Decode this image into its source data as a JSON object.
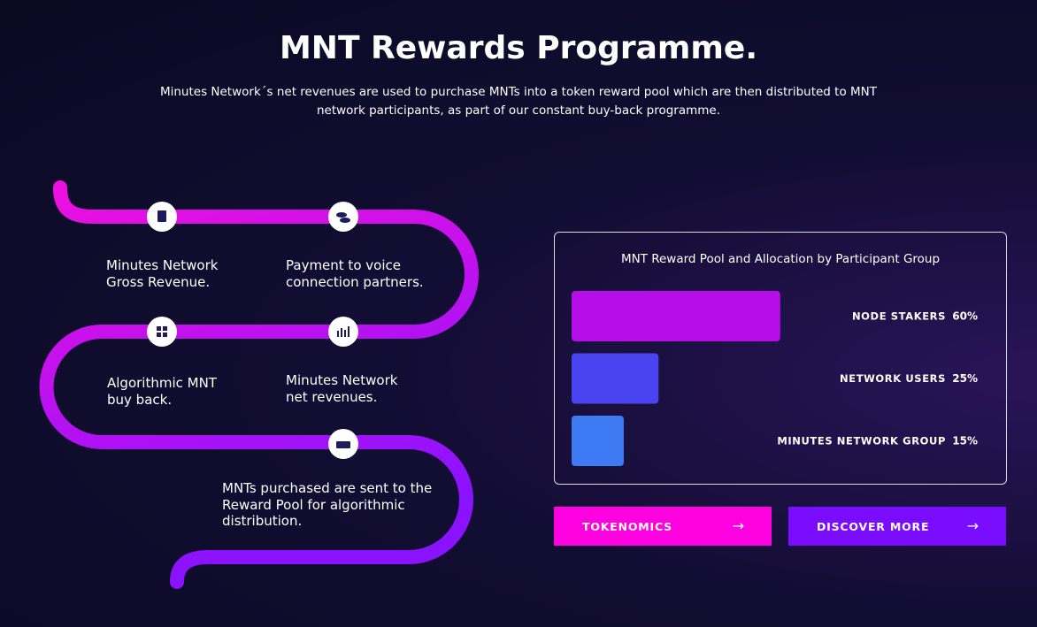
{
  "header": {
    "title": "MNT Rewards Programme.",
    "description": "Minutes Network´s net revenues are used to purchase MNTs into a token reward pool which are then distributed to MNT network participants, as part of our constant buy-back programme."
  },
  "steps": [
    "Minutes Network\nGross Revenue.",
    "Payment to voice\nconnection partners.",
    "Algorithmic MNT\nbuy back.",
    "Minutes Network\nnet revenues.",
    "MNTs purchased are sent to the\nReward Pool for algorithmic\ndistribution."
  ],
  "chart_data": {
    "type": "bar",
    "orientation": "horizontal",
    "title": "MNT Reward Pool and Allocation by Participant Group",
    "categories": [
      "NODE STAKERS",
      "NETWORK USERS",
      "MINUTES NETWORK GROUP"
    ],
    "values": [
      60,
      25,
      15
    ],
    "value_labels": [
      "60%",
      "25%",
      "15%"
    ],
    "colors": [
      "#b60ee8",
      "#4a44f0",
      "#3f7af5"
    ]
  },
  "buttons": [
    "TOKENOMICS",
    "DISCOVER MORE"
  ]
}
